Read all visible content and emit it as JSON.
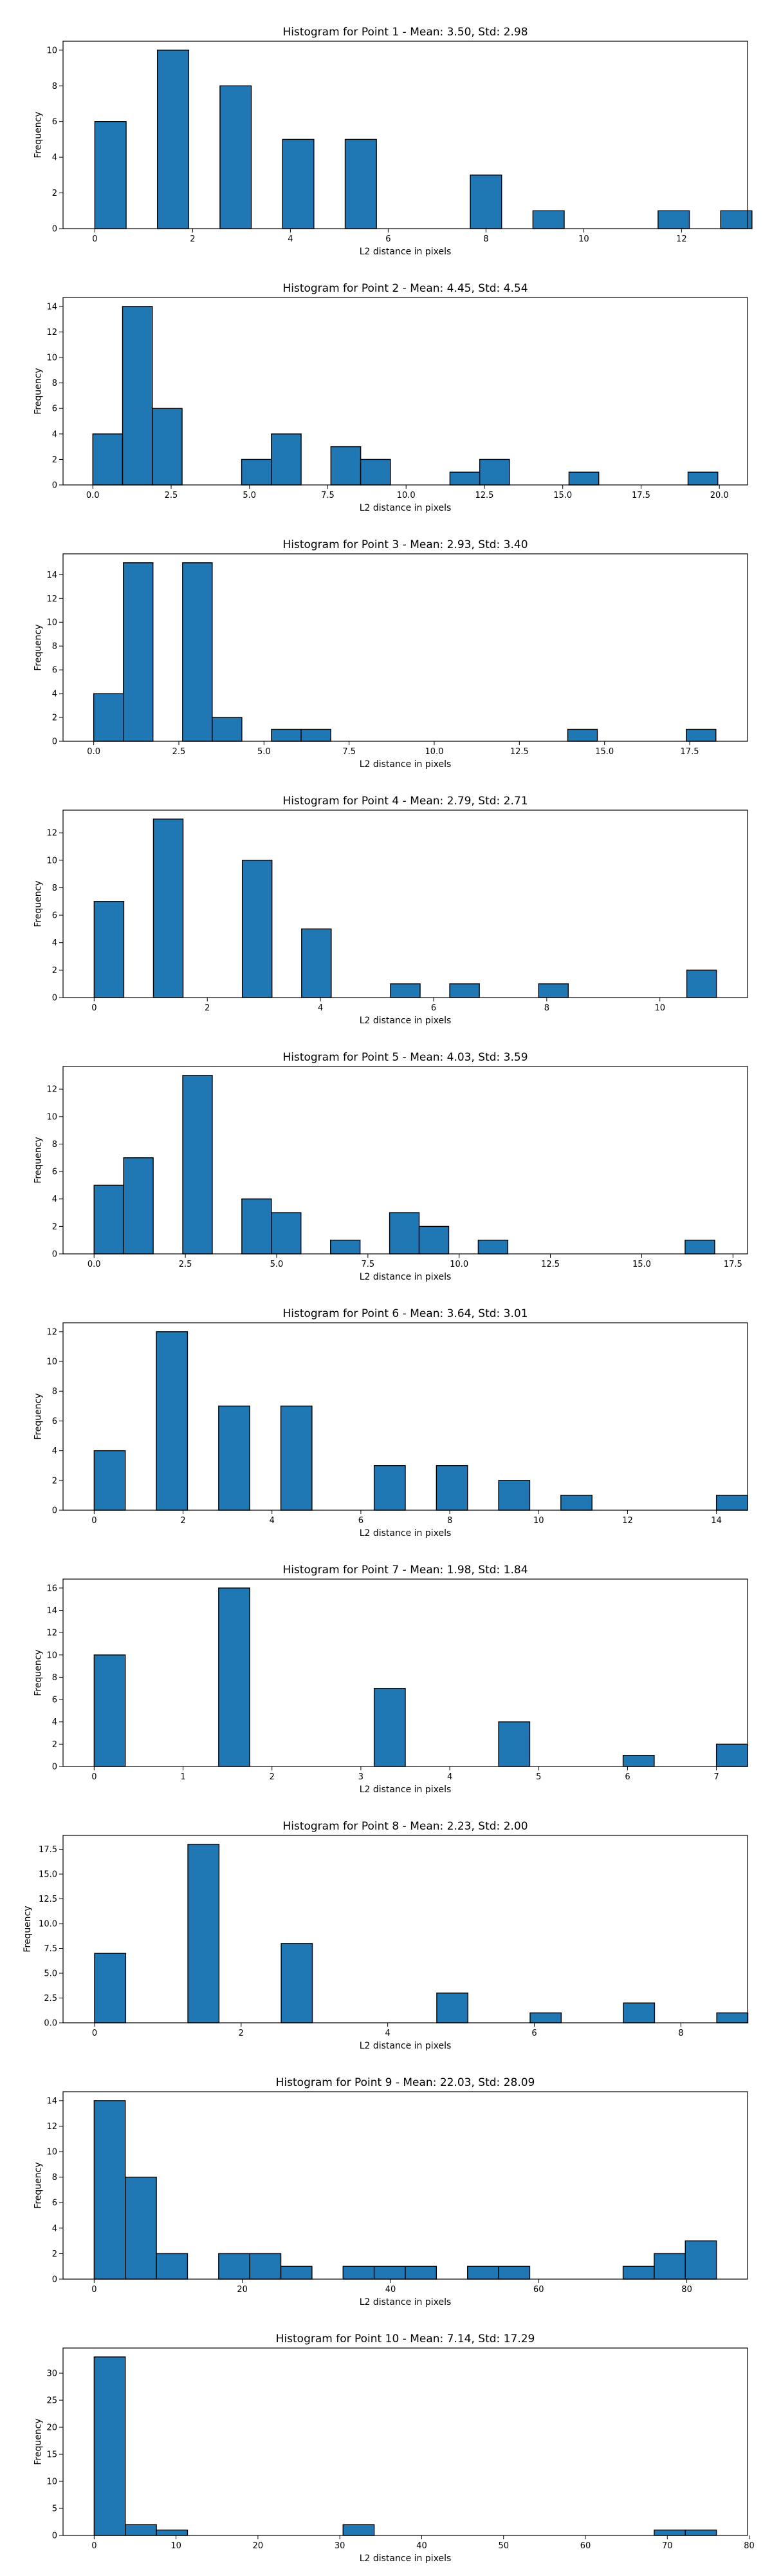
{
  "chart_data": [
    {
      "type": "bar",
      "title": "Histogram for Point 1 - Mean: 3.50, Std: 2.98",
      "xlabel": "L2 distance in pixels",
      "ylabel": "Frequency",
      "grid": false,
      "xlim": [
        -0.65,
        13.35
      ],
      "ylim": [
        0,
        10.5
      ],
      "xticks": [
        0,
        2,
        4,
        6,
        8,
        10,
        12
      ],
      "xtick_labels": [
        "0",
        "2",
        "4",
        "6",
        "8",
        "10",
        "12"
      ],
      "yticks": [
        0,
        2,
        4,
        6,
        8,
        10
      ],
      "ytick_labels": [
        "0",
        "2",
        "4",
        "6",
        "8",
        "10"
      ],
      "bin_start": 0,
      "bin_width": 0.64,
      "values": [
        6,
        0,
        10,
        0,
        8,
        0,
        5,
        0,
        5,
        0,
        0,
        0,
        3,
        0,
        1,
        0,
        0,
        0,
        1,
        0,
        1
      ]
    },
    {
      "type": "bar",
      "title": "Histogram for Point 2 - Mean: 4.45, Std: 4.54",
      "xlabel": "L2 distance in pixels",
      "ylabel": "Frequency",
      "grid": false,
      "xlim": [
        -0.95,
        20.9
      ],
      "ylim": [
        0,
        14.7
      ],
      "xticks": [
        0,
        2.5,
        5,
        7.5,
        10,
        12.5,
        15,
        17.5,
        20
      ],
      "xtick_labels": [
        "0.0",
        "2.5",
        "5.0",
        "7.5",
        "10.0",
        "12.5",
        "15.0",
        "17.5",
        "20.0"
      ],
      "yticks": [
        0,
        2,
        4,
        6,
        8,
        10,
        12,
        14
      ],
      "ytick_labels": [
        "0",
        "2",
        "4",
        "6",
        "8",
        "10",
        "12",
        "14"
      ],
      "bin_start": 0,
      "bin_width": 0.95,
      "values": [
        4,
        14,
        6,
        0,
        0,
        2,
        4,
        0,
        3,
        2,
        0,
        0,
        1,
        2,
        0,
        0,
        1,
        0,
        0,
        0,
        1
      ]
    },
    {
      "type": "bar",
      "title": "Histogram for Point 3 - Mean: 2.93, Std: 3.40",
      "xlabel": "L2 distance in pixels",
      "ylabel": "Frequency",
      "grid": false,
      "xlim": [
        -0.9,
        19.2
      ],
      "ylim": [
        0,
        15.75
      ],
      "xticks": [
        0,
        2.5,
        5,
        7.5,
        10,
        12.5,
        15,
        17.5
      ],
      "xtick_labels": [
        "0.0",
        "2.5",
        "5.0",
        "7.5",
        "10.0",
        "12.5",
        "15.0",
        "17.5"
      ],
      "yticks": [
        0,
        2,
        4,
        6,
        8,
        10,
        12,
        14
      ],
      "ytick_labels": [
        "0",
        "2",
        "4",
        "6",
        "8",
        "10",
        "12",
        "14"
      ],
      "bin_start": 0,
      "bin_width": 0.87,
      "values": [
        4,
        15,
        0,
        15,
        2,
        0,
        1,
        1,
        0,
        0,
        0,
        0,
        0,
        0,
        0,
        0,
        1,
        0,
        0,
        0,
        1
      ]
    },
    {
      "type": "bar",
      "title": "Histogram for Point 4 - Mean: 2.79, Std: 2.71",
      "xlabel": "L2 distance in pixels",
      "ylabel": "Frequency",
      "grid": false,
      "xlim": [
        -0.55,
        11.55
      ],
      "ylim": [
        0,
        13.65
      ],
      "xticks": [
        0,
        2,
        4,
        6,
        8,
        10
      ],
      "xtick_labels": [
        "0",
        "2",
        "4",
        "6",
        "8",
        "10"
      ],
      "yticks": [
        0,
        2,
        4,
        6,
        8,
        10,
        12
      ],
      "ytick_labels": [
        "0",
        "2",
        "4",
        "6",
        "8",
        "10",
        "12"
      ],
      "bin_start": 0,
      "bin_width": 0.5238,
      "values": [
        7,
        0,
        13,
        0,
        0,
        10,
        0,
        5,
        0,
        0,
        1,
        0,
        1,
        0,
        0,
        1,
        0,
        0,
        0,
        0,
        2
      ]
    },
    {
      "type": "bar",
      "title": "Histogram for Point 5 - Mean: 4.03, Std: 3.59",
      "xlabel": "L2 distance in pixels",
      "ylabel": "Frequency",
      "grid": false,
      "xlim": [
        -0.85,
        17.9
      ],
      "ylim": [
        0,
        13.65
      ],
      "xticks": [
        0,
        2.5,
        5,
        7.5,
        10,
        12.5,
        15,
        17.5
      ],
      "xtick_labels": [
        "0.0",
        "2.5",
        "5.0",
        "7.5",
        "10.0",
        "12.5",
        "15.0",
        "17.5"
      ],
      "yticks": [
        0,
        2,
        4,
        6,
        8,
        10,
        12
      ],
      "ytick_labels": [
        "0",
        "2",
        "4",
        "6",
        "8",
        "10",
        "12"
      ],
      "bin_start": 0,
      "bin_width": 0.8095,
      "values": [
        5,
        7,
        0,
        13,
        0,
        4,
        3,
        0,
        1,
        0,
        3,
        2,
        0,
        1,
        0,
        0,
        0,
        0,
        0,
        0,
        1
      ]
    },
    {
      "type": "bar",
      "title": "Histogram for Point 6 - Mean: 3.64, Std: 3.01",
      "xlabel": "L2 distance in pixels",
      "ylabel": "Frequency",
      "grid": false,
      "xlim": [
        -0.7,
        14.7
      ],
      "ylim": [
        0,
        12.6
      ],
      "xticks": [
        0,
        2,
        4,
        6,
        8,
        10,
        12,
        14
      ],
      "xtick_labels": [
        "0",
        "2",
        "4",
        "6",
        "8",
        "10",
        "12",
        "14"
      ],
      "yticks": [
        0,
        2,
        4,
        6,
        8,
        10,
        12
      ],
      "ytick_labels": [
        "0",
        "2",
        "4",
        "6",
        "8",
        "10",
        "12"
      ],
      "bin_start": 0,
      "bin_width": 0.7,
      "values": [
        4,
        0,
        12,
        0,
        7,
        0,
        7,
        0,
        0,
        3,
        0,
        3,
        0,
        2,
        0,
        1,
        0,
        0,
        0,
        0,
        1
      ]
    },
    {
      "type": "bar",
      "title": "Histogram for Point 7 - Mean: 1.98, Std: 1.84",
      "xlabel": "L2 distance in pixels",
      "ylabel": "Frequency",
      "grid": false,
      "xlim": [
        -0.35,
        7.35
      ],
      "ylim": [
        0,
        16.8
      ],
      "xticks": [
        0,
        1,
        2,
        3,
        4,
        5,
        6,
        7
      ],
      "xtick_labels": [
        "0",
        "1",
        "2",
        "3",
        "4",
        "5",
        "6",
        "7"
      ],
      "yticks": [
        0,
        2,
        4,
        6,
        8,
        10,
        12,
        14,
        16
      ],
      "ytick_labels": [
        "0",
        "2",
        "4",
        "6",
        "8",
        "10",
        "12",
        "14",
        "16"
      ],
      "bin_start": 0,
      "bin_width": 0.35,
      "values": [
        10,
        0,
        0,
        0,
        16,
        0,
        0,
        0,
        0,
        7,
        0,
        0,
        0,
        4,
        0,
        0,
        0,
        1,
        0,
        0,
        2
      ]
    },
    {
      "type": "bar",
      "title": "Histogram for Point 8 - Mean: 2.23, Std: 2.00",
      "xlabel": "L2 distance in pixels",
      "ylabel": "Frequency",
      "grid": false,
      "xlim": [
        -0.43,
        8.91
      ],
      "ylim": [
        0,
        18.9
      ],
      "xticks": [
        0,
        2,
        4,
        6,
        8
      ],
      "xtick_labels": [
        "0",
        "2",
        "4",
        "6",
        "8"
      ],
      "yticks": [
        0,
        2.5,
        5,
        7.5,
        10,
        12.5,
        15,
        17.5
      ],
      "ytick_labels": [
        "0.0",
        "2.5",
        "5.0",
        "7.5",
        "10.0",
        "12.5",
        "15.0",
        "17.5"
      ],
      "bin_start": 0,
      "bin_width": 0.4245,
      "values": [
        7,
        0,
        0,
        18,
        0,
        0,
        8,
        0,
        0,
        0,
        0,
        3,
        0,
        0,
        1,
        0,
        0,
        2,
        0,
        0,
        1
      ]
    },
    {
      "type": "bar",
      "title": "Histogram for Point 9 - Mean: 22.03, Std: 28.09",
      "xlabel": "L2 distance in pixels",
      "ylabel": "Frequency",
      "grid": false,
      "xlim": [
        -4.2,
        88.2
      ],
      "ylim": [
        0,
        14.7
      ],
      "xticks": [
        0,
        20,
        40,
        60,
        80
      ],
      "xtick_labels": [
        "0",
        "20",
        "40",
        "60",
        "80"
      ],
      "yticks": [
        0,
        2,
        4,
        6,
        8,
        10,
        12,
        14
      ],
      "ytick_labels": [
        "0",
        "2",
        "4",
        "6",
        "8",
        "10",
        "12",
        "14"
      ],
      "bin_start": 0,
      "bin_width": 4.2,
      "values": [
        14,
        8,
        2,
        0,
        2,
        2,
        1,
        0,
        1,
        1,
        1,
        0,
        1,
        1,
        0,
        0,
        0,
        1,
        2,
        3
      ]
    },
    {
      "type": "bar",
      "title": "Histogram for Point 10 - Mean: 7.14, Std: 17.29",
      "xlabel": "L2 distance in pixels",
      "ylabel": "Frequency",
      "grid": false,
      "xlim": [
        -3.8,
        79.8
      ],
      "ylim": [
        0,
        34.65
      ],
      "xticks": [
        0,
        10,
        20,
        30,
        40,
        50,
        60,
        70,
        80
      ],
      "xtick_labels": [
        "0",
        "10",
        "20",
        "30",
        "40",
        "50",
        "60",
        "70",
        "80"
      ],
      "yticks": [
        0,
        5,
        10,
        15,
        20,
        25,
        30
      ],
      "ytick_labels": [
        "0",
        "5",
        "10",
        "15",
        "20",
        "25",
        "30"
      ],
      "bin_start": 0,
      "bin_width": 3.8,
      "values": [
        33,
        2,
        1,
        0,
        0,
        0,
        0,
        0,
        2,
        0,
        0,
        0,
        0,
        0,
        0,
        0,
        0,
        0,
        1,
        1
      ]
    }
  ]
}
